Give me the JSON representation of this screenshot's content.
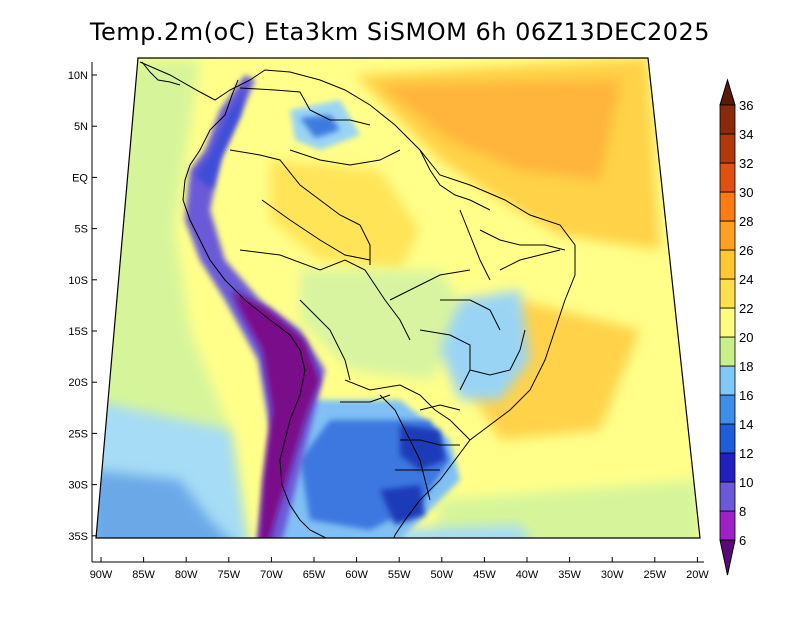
{
  "title": "Temp.2m(oC) Eta3km SiSMOM 6h 06Z13DEC2025",
  "map": {
    "lat_labels": [
      "10N",
      "5N",
      "EQ",
      "5S",
      "10S",
      "15S",
      "20S",
      "25S",
      "30S",
      "35S"
    ],
    "lon_labels": [
      "90W",
      "85W",
      "80W",
      "75W",
      "70W",
      "65W",
      "60W",
      "55W",
      "50W",
      "45W",
      "40W",
      "35W",
      "30W",
      "25W",
      "20W"
    ]
  },
  "colorbar": {
    "levels": [
      "6",
      "8",
      "10",
      "12",
      "14",
      "16",
      "18",
      "20",
      "22",
      "24",
      "26",
      "28",
      "30",
      "32",
      "34",
      "36"
    ],
    "colors": [
      "#7a0b8a",
      "#a020c8",
      "#6a5ad8",
      "#2020c0",
      "#1e5ed8",
      "#3c8ee8",
      "#80c8f8",
      "#c8f088",
      "#fffa80",
      "#ffe050",
      "#ffc830",
      "#ffa020",
      "#ff7a10",
      "#e05010",
      "#b03a0a",
      "#8a2a0a",
      "#5a1a05"
    ],
    "low_tip_color": "#5a0a78",
    "high_tip_color": "#5a1a05"
  }
}
